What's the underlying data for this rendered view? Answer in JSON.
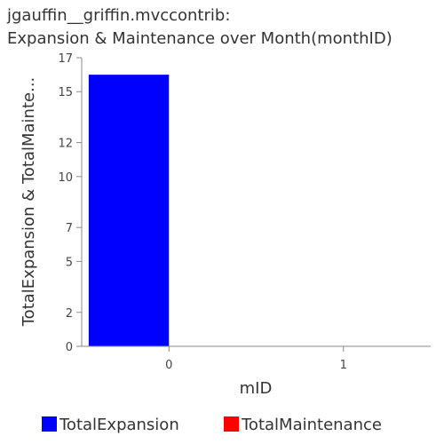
{
  "chart_data": {
    "type": "bar",
    "title_lines": [
      "jgauffin__griffin.mvccontrib:",
      "Expansion & Maintenance over Month(monthID)"
    ],
    "xlabel": "mID",
    "ylabel": "TotalExpansion & TotalMainte...",
    "categories": [
      "0",
      "1"
    ],
    "series": [
      {
        "name": "TotalExpansion",
        "color": "#0000ff",
        "values": [
          16,
          0
        ]
      },
      {
        "name": "TotalMaintenance",
        "color": "#ff0000",
        "values": [
          0,
          0
        ]
      }
    ],
    "ylim": [
      0,
      17
    ],
    "yticks": [
      0,
      2,
      5,
      7,
      10,
      12,
      15,
      17
    ],
    "legend_position": "bottom",
    "grid": false
  }
}
